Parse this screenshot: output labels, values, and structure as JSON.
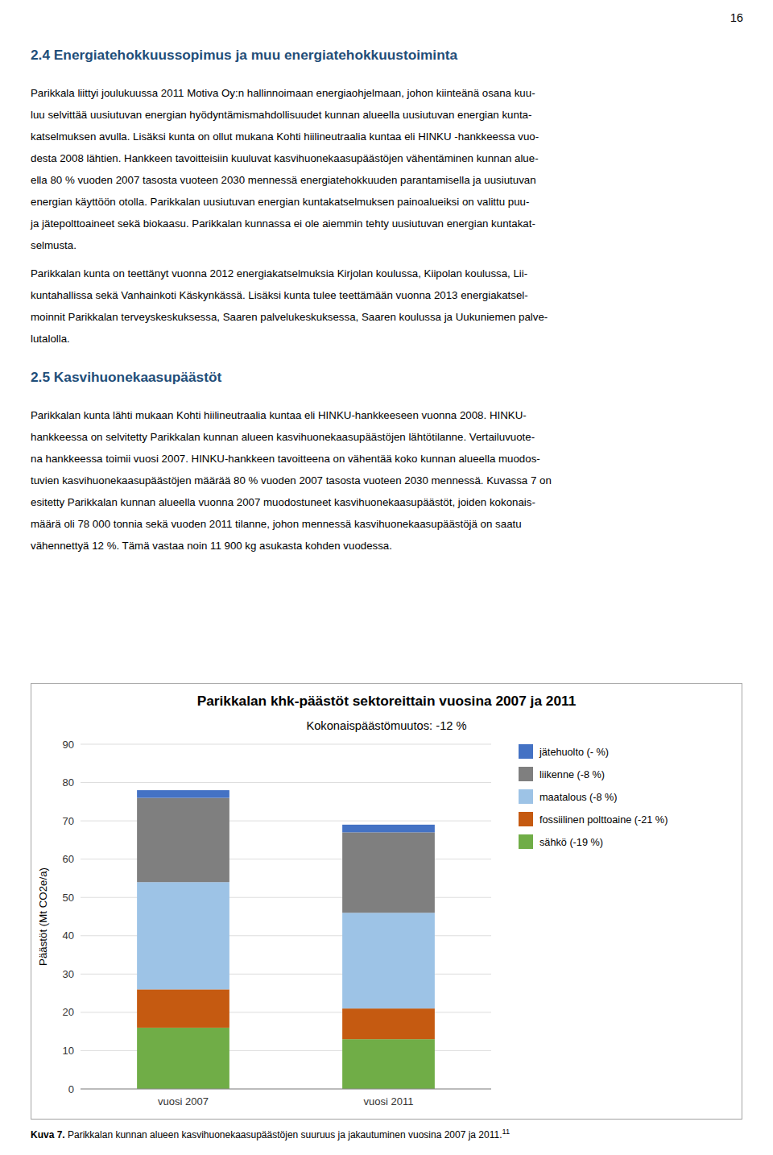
{
  "page_number": "16",
  "sections": [
    {
      "heading": "2.4 Energiatehokkuussopimus ja muu energiatehokkuustoiminta",
      "paragraphs": [
        [
          "Parikkala liittyi joulukuussa 2011 Motiva Oy:n hallinnoimaan energiaohjelmaan, johon kiinteänä osana kuu-",
          "luu selvittää uusiutuvan energian hyödyntämismahdollisuudet kunnan alueella uusiutuvan energian kunta-",
          "katselmuksen avulla. Lisäksi kunta on ollut mukana Kohti hiilineutraalia kuntaa eli HINKU -hankkeessa vuo-",
          "desta 2008 lähtien. Hankkeen tavoitteisiin kuuluvat kasvihuonekaasupäästöjen vähentäminen kunnan alue-",
          "ella 80 % vuoden 2007 tasosta vuoteen 2030 mennessä energiatehokkuuden parantamisella ja uusiutuvan",
          "energian käyttöön otolla. Parikkalan uusiutuvan energian kuntakatselmuksen painoalueiksi on valittu puu-",
          "ja jätepolttoaineet sekä biokaasu. Parikkalan kunnassa ei ole aiemmin tehty uusiutuvan energian kuntakat-",
          "selmusta."
        ],
        [
          "Parikkalan kunta on teettänyt vuonna 2012 energiakatselmuksia Kirjolan koulussa, Kiipolan koulussa, Lii-",
          "kuntahallissa sekä Vanhainkoti Käskynkässä. Lisäksi kunta tulee teettämään vuonna 2013 energiakatsel-",
          "moinnit Parikkalan terveyskeskuksessa, Saaren palvelukeskuksessa, Saaren koulussa ja Uukuniemen palve-",
          "lutalolla."
        ]
      ]
    },
    {
      "heading": "2.5 Kasvihuonekaasupäästöt",
      "paragraphs": [
        [
          "Parikkalan kunta lähti mukaan Kohti hiilineutraalia kuntaa eli HINKU-hankkeeseen vuonna 2008. HINKU-",
          "hankkeessa on selvitetty Parikkalan kunnan alueen kasvihuonekaasupäästöjen lähtötilanne. Vertailuvuote-",
          "na hankkeessa toimii vuosi 2007. HINKU-hankkeen tavoitteena on vähentää koko kunnan alueella muodos-",
          "tuvien kasvihuonekaasupäästöjen määrää 80 % vuoden 2007 tasosta vuoteen 2030 mennessä. Kuvassa 7 on",
          "esitetty Parikkalan kunnan alueella vuonna 2007 muodostuneet kasvihuonekaasupäästöt, joiden kokonais-",
          "määrä oli 78 000 tonnia sekä vuoden 2011 tilanne, johon mennessä kasvihuonekaasupäästöjä on saatu",
          "vähennettyä 12 %. Tämä vastaa noin 11 900 kg asukasta kohden vuodessa."
        ]
      ]
    }
  ],
  "caption": {
    "label": "Kuva 7.",
    "text": " Parikkalan kunnan alueen kasvihuonekaasupäästöjen suuruus ja jakautuminen vuosina 2007 ja 2011.",
    "superscript": "11"
  },
  "chart_data": {
    "type": "bar",
    "stacked": true,
    "title": "Parikkalan khk-päästöt sektoreittain vuosina 2007 ja 2011",
    "subtitle": "Kokonaispäästömuutos: -12 %",
    "ylabel": "Päästöt (Mt CO2e/a)",
    "categories": [
      "vuosi 2007",
      "vuosi 2011"
    ],
    "series": [
      {
        "name": "jätehuolto (- %)",
        "color": "#4472C4",
        "values": [
          2,
          2
        ]
      },
      {
        "name": "liikenne (-8 %)",
        "color": "#7F7F7F",
        "values": [
          22,
          21
        ]
      },
      {
        "name": "maatalous (-8 %)",
        "color": "#9DC3E6",
        "values": [
          28,
          25
        ]
      },
      {
        "name": "fossiilinen polttoaine (-21 %)",
        "color": "#C55A11",
        "values": [
          10,
          8
        ]
      },
      {
        "name": "sähkö (-19 %)",
        "color": "#70AD47",
        "values": [
          16,
          13
        ]
      }
    ],
    "ylim": [
      0,
      90
    ],
    "yticks": [
      0,
      10,
      20,
      30,
      40,
      50,
      60,
      70,
      80,
      90
    ],
    "grid": true,
    "legend": "right"
  }
}
